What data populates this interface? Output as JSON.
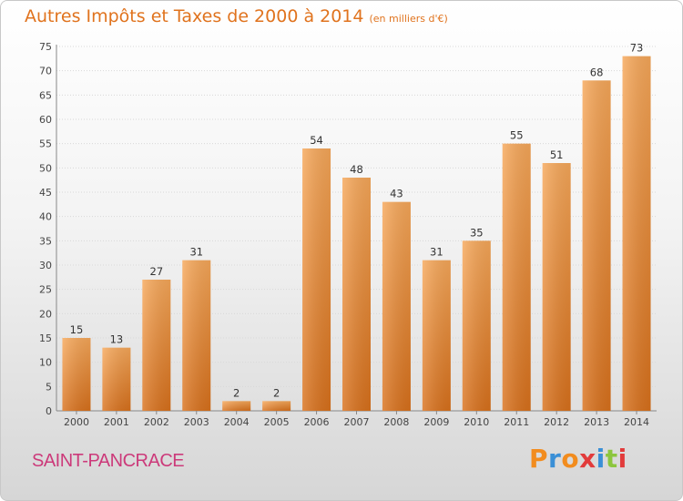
{
  "chart_data": {
    "type": "bar",
    "title": "Autres Impôts et Taxes de 2000 à 2014",
    "unit": "(en milliers d'€)",
    "categories": [
      "2000",
      "2001",
      "2002",
      "2003",
      "2004",
      "2005",
      "2006",
      "2007",
      "2008",
      "2009",
      "2010",
      "2011",
      "2012",
      "2013",
      "2014"
    ],
    "values": [
      15,
      13,
      27,
      31,
      2,
      2,
      54,
      48,
      43,
      31,
      35,
      55,
      51,
      68,
      73
    ],
    "ylim": [
      0,
      75
    ],
    "yticks": [
      0,
      5,
      10,
      15,
      20,
      25,
      30,
      35,
      40,
      45,
      50,
      55,
      60,
      65,
      70,
      75
    ],
    "grid": true,
    "xlabel": "",
    "ylabel": ""
  },
  "footer": {
    "commune": "SAINT-PANCRACE",
    "brand": "Proxiti"
  },
  "colors": {
    "bar_light": "#f7a85a",
    "bar_dark": "#d9711c",
    "title": "#e0731e",
    "commune": "#cc3a7a"
  }
}
